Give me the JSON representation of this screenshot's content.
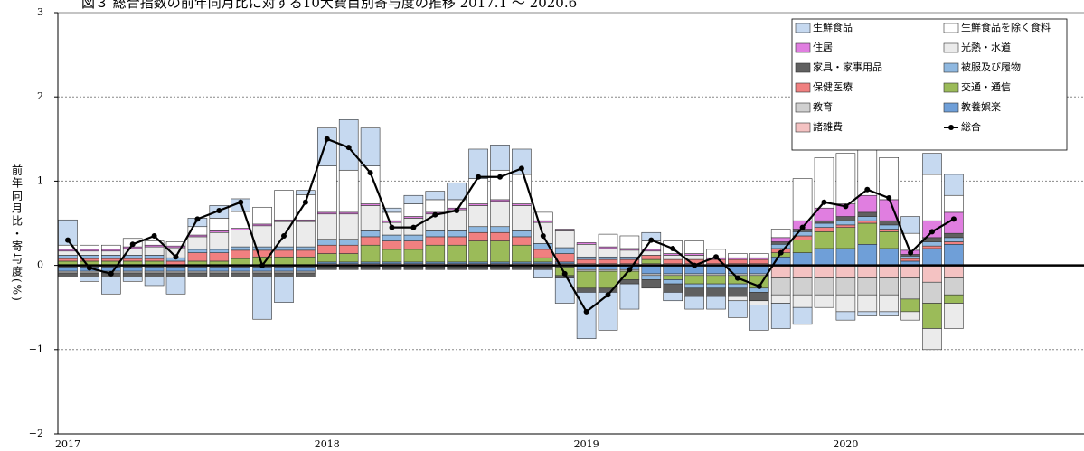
{
  "chart_data": {
    "type": "bar",
    "title": "図３ 総合指数の前年同月比に対する10大費目別寄与度の推移 2017.1 ～ 2020.6",
    "y_label": "前年同月比・寄与度(%)",
    "categories": [
      "2017",
      null,
      null,
      null,
      null,
      null,
      null,
      null,
      null,
      null,
      null,
      null,
      "2018",
      null,
      null,
      null,
      null,
      null,
      null,
      null,
      null,
      null,
      null,
      null,
      "2019",
      null,
      null,
      null,
      null,
      null,
      null,
      null,
      null,
      null,
      null,
      null,
      "2020",
      null,
      null,
      null,
      null,
      null
    ],
    "ylim": [
      -2,
      3
    ],
    "yticks": [
      {
        "value": -2,
        "label": "−2"
      },
      {
        "value": -1,
        "label": "−1"
      },
      0,
      1,
      2,
      3
    ],
    "grid": true,
    "legend": "upper right",
    "series": [
      {
        "name": "生鮮食品",
        "color": "#c6d9f0",
        "values": [
          0.3,
          -0.05,
          -0.2,
          -0.05,
          -0.1,
          -0.2,
          0.1,
          0.15,
          0.15,
          -0.5,
          -0.3,
          0.05,
          0.45,
          0.6,
          0.45,
          0.05,
          0.1,
          0.1,
          0.2,
          0.35,
          0.3,
          0.3,
          -0.1,
          -0.3,
          -0.55,
          -0.45,
          -0.3,
          0.1,
          -0.1,
          -0.15,
          -0.15,
          -0.2,
          -0.3,
          -0.3,
          -0.2,
          0.0,
          -0.1,
          -0.05,
          -0.05,
          0.2,
          0.25,
          0.25
        ]
      },
      {
        "name": "生鮮食品を除く食料",
        "color": "#ffffff",
        "values": [
          0.05,
          0.05,
          0.05,
          0.1,
          0.05,
          0.05,
          0.1,
          0.15,
          0.2,
          0.2,
          0.35,
          0.3,
          0.55,
          0.5,
          0.45,
          0.1,
          0.15,
          0.15,
          0.1,
          0.3,
          0.35,
          0.35,
          0.1,
          0.0,
          0.0,
          0.15,
          0.15,
          0.1,
          0.15,
          0.15,
          0.1,
          0.05,
          0.05,
          0.1,
          0.5,
          0.6,
          0.6,
          0.6,
          0.5,
          0.2,
          0.55,
          0.2
        ]
      },
      {
        "name": "住居",
        "color": "#e07ee0",
        "values": [
          0.02,
          0.02,
          0.02,
          0.02,
          0.02,
          0.02,
          0.02,
          0.02,
          0.02,
          0.02,
          0.02,
          0.02,
          0.02,
          0.02,
          0.02,
          0.02,
          0.02,
          0.02,
          0.02,
          0.02,
          0.02,
          0.02,
          0.02,
          0.02,
          0.02,
          0.02,
          0.02,
          0.02,
          0.02,
          0.02,
          0.02,
          0.02,
          0.02,
          0.05,
          0.1,
          0.15,
          0.15,
          0.2,
          0.25,
          0.05,
          0.2,
          0.25
        ]
      },
      {
        "name": "光熱・水道",
        "color": "#ebebeb",
        "values": [
          0.05,
          0.05,
          0.05,
          0.08,
          0.1,
          0.12,
          0.15,
          0.2,
          0.2,
          0.25,
          0.3,
          0.3,
          0.3,
          0.3,
          0.3,
          0.15,
          0.2,
          0.2,
          0.25,
          0.25,
          0.3,
          0.3,
          0.25,
          0.2,
          0.15,
          0.1,
          0.08,
          0.05,
          0.05,
          0.05,
          0.0,
          -0.05,
          -0.05,
          -0.1,
          -0.15,
          -0.15,
          -0.2,
          -0.2,
          -0.2,
          -0.1,
          -0.25,
          -0.3
        ]
      },
      {
        "name": "家具・家事用品",
        "color": "#606060",
        "values": [
          -0.05,
          -0.05,
          -0.05,
          -0.05,
          -0.05,
          -0.05,
          -0.05,
          -0.05,
          -0.05,
          -0.05,
          -0.05,
          -0.05,
          -0.03,
          -0.03,
          -0.03,
          -0.03,
          -0.03,
          -0.03,
          -0.03,
          -0.03,
          -0.03,
          -0.03,
          -0.03,
          -0.03,
          -0.05,
          -0.05,
          -0.05,
          -0.1,
          -0.1,
          -0.1,
          -0.1,
          -0.1,
          -0.1,
          0.03,
          0.03,
          0.03,
          0.05,
          0.05,
          0.05,
          0.02,
          0.05,
          0.05
        ]
      },
      {
        "name": "被服及び履物",
        "color": "#8fb8e0",
        "values": [
          0.04,
          0.04,
          0.04,
          0.04,
          0.04,
          0.04,
          0.04,
          0.04,
          0.04,
          0.04,
          0.04,
          0.04,
          0.07,
          0.07,
          0.07,
          0.07,
          0.07,
          0.07,
          0.07,
          0.07,
          0.07,
          0.07,
          0.07,
          0.07,
          0.03,
          0.03,
          0.03,
          -0.05,
          -0.05,
          -0.05,
          -0.05,
          -0.05,
          -0.05,
          0.05,
          0.05,
          0.05,
          0.05,
          0.05,
          0.05,
          0.03,
          0.05,
          0.05
        ]
      },
      {
        "name": "保健医療",
        "color": "#f08080",
        "values": [
          0.03,
          0.03,
          0.03,
          0.03,
          0.03,
          0.05,
          0.1,
          0.1,
          0.1,
          0.08,
          0.08,
          0.08,
          0.1,
          0.1,
          0.1,
          0.1,
          0.1,
          0.1,
          0.1,
          0.1,
          0.1,
          0.1,
          0.1,
          0.1,
          0.05,
          0.05,
          0.05,
          0.05,
          0.05,
          0.05,
          0.05,
          0.05,
          0.05,
          0.05,
          0.05,
          0.05,
          0.03,
          0.03,
          0.03,
          0.03,
          0.03,
          0.03
        ]
      },
      {
        "name": "交通・通信",
        "color": "#9bbb59",
        "values": [
          0.05,
          0.05,
          0.05,
          0.05,
          0.05,
          0.0,
          0.05,
          0.05,
          0.08,
          0.1,
          0.1,
          0.1,
          0.1,
          0.1,
          0.2,
          0.15,
          0.15,
          0.2,
          0.2,
          0.25,
          0.25,
          0.2,
          0.05,
          -0.1,
          -0.2,
          -0.2,
          -0.1,
          0.05,
          -0.05,
          -0.1,
          -0.1,
          -0.1,
          -0.15,
          0.05,
          0.15,
          0.2,
          0.25,
          0.25,
          0.2,
          -0.15,
          -0.3,
          -0.1
        ]
      },
      {
        "name": "教育",
        "color": "#d0d0d0",
        "values": [
          -0.02,
          -0.02,
          -0.02,
          -0.02,
          -0.02,
          -0.02,
          -0.02,
          -0.02,
          -0.02,
          -0.02,
          -0.02,
          -0.02,
          -0.02,
          -0.02,
          -0.02,
          -0.02,
          -0.02,
          -0.02,
          -0.02,
          -0.02,
          -0.02,
          -0.02,
          -0.02,
          -0.02,
          -0.02,
          -0.02,
          -0.02,
          -0.02,
          -0.02,
          -0.02,
          -0.02,
          -0.02,
          -0.02,
          -0.2,
          -0.2,
          -0.2,
          -0.2,
          -0.2,
          -0.2,
          -0.25,
          -0.25,
          -0.2
        ]
      },
      {
        "name": "教養娯楽",
        "color": "#6f9fd8",
        "values": [
          -0.05,
          -0.05,
          -0.05,
          -0.05,
          -0.05,
          -0.05,
          -0.05,
          -0.05,
          -0.05,
          -0.05,
          -0.05,
          -0.05,
          0.02,
          0.02,
          0.02,
          0.02,
          0.02,
          0.02,
          0.02,
          0.02,
          0.02,
          0.02,
          0.02,
          0.02,
          -0.05,
          -0.05,
          -0.05,
          -0.1,
          -0.1,
          -0.1,
          -0.1,
          -0.1,
          -0.1,
          0.1,
          0.15,
          0.2,
          0.2,
          0.25,
          0.2,
          0.05,
          0.2,
          0.25
        ]
      },
      {
        "name": "諸雑費",
        "color": "#f4c2c2",
        "values": [
          -0.02,
          -0.02,
          -0.02,
          -0.02,
          -0.02,
          -0.02,
          -0.02,
          -0.02,
          -0.02,
          -0.02,
          -0.02,
          -0.02,
          0.02,
          0.02,
          0.02,
          0.02,
          0.02,
          0.02,
          0.02,
          0.02,
          0.02,
          0.02,
          0.02,
          0.02,
          0.02,
          0.02,
          0.02,
          0.02,
          0.02,
          0.02,
          0.02,
          0.02,
          0.02,
          -0.15,
          -0.15,
          -0.15,
          -0.15,
          -0.15,
          -0.15,
          -0.15,
          -0.2,
          -0.15
        ]
      },
      {
        "name": "総合",
        "color": "#000000",
        "type": "line",
        "values": [
          0.3,
          -0.03,
          -0.1,
          0.25,
          0.35,
          0.1,
          0.55,
          0.65,
          0.75,
          0.0,
          0.35,
          0.75,
          1.5,
          1.4,
          1.1,
          0.45,
          0.45,
          0.6,
          0.65,
          1.05,
          1.05,
          1.15,
          0.35,
          -0.1,
          -0.55,
          -0.35,
          -0.05,
          0.3,
          0.2,
          0.0,
          0.1,
          -0.15,
          -0.25,
          0.15,
          0.45,
          0.75,
          0.7,
          0.9,
          0.8,
          0.15,
          0.4,
          0.55
        ]
      }
    ]
  }
}
